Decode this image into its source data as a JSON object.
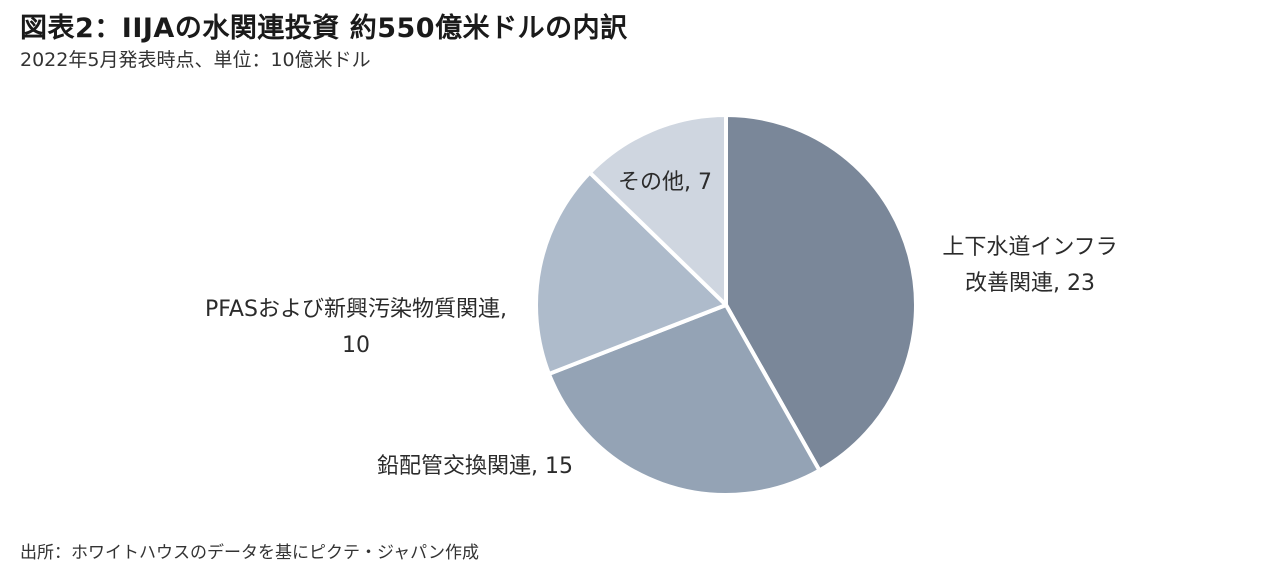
{
  "header": {
    "title": "図表2：IIJAの水関連投資 約550億米ドルの内訳",
    "subtitle": "2022年5月発表時点、単位：10億米ドル"
  },
  "footer": {
    "source": "出所：ホワイトハウスのデータを基にピクテ・ジャパン作成"
  },
  "chart_data": {
    "type": "pie",
    "title": "図表2：IIJAの水関連投資 約550億米ドルの内訳",
    "subtitle": "2022年5月発表時点、単位：10億米ドル",
    "slices": [
      {
        "label_lines": [
          "上下水道インフラ",
          "改善関連, 23"
        ],
        "value": 23,
        "color": "#7a8799"
      },
      {
        "label_lines": [
          "鉛配管交換関連, 15"
        ],
        "value": 15,
        "color": "#94a3b5"
      },
      {
        "label_lines": [
          "PFASおよび新興汚染物質関連,",
          "10"
        ],
        "value": 10,
        "color": "#aebbcb"
      },
      {
        "label_lines": [
          "その他, 7"
        ],
        "value": 7,
        "color": "#cfd6e0"
      }
    ],
    "legend": "none",
    "start": "12 o'clock, clockwise"
  }
}
